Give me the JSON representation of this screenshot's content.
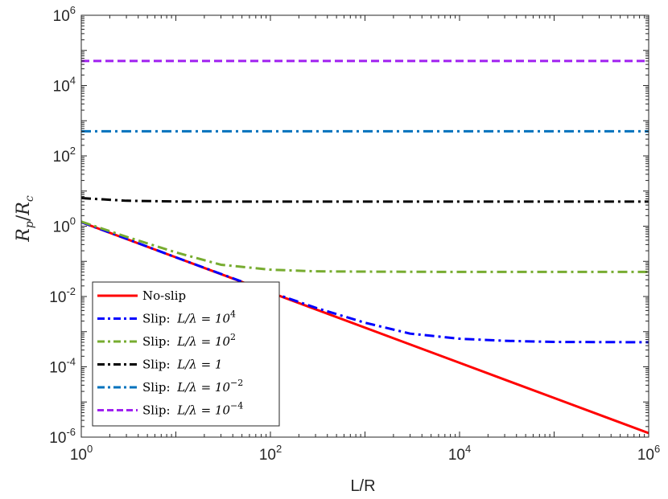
{
  "chart_data": {
    "type": "line",
    "xlabel": "L/R",
    "ylabel": {
      "base": "R",
      "num_sub": "p",
      "den_sub": "c"
    },
    "x_scale": "log",
    "y_scale": "log",
    "xlim": [
      1,
      1000000
    ],
    "ylim": [
      1e-06,
      1000000
    ],
    "x_ticks": [
      {
        "base": "10",
        "exp": "0"
      },
      {
        "base": "10",
        "exp": "2"
      },
      {
        "base": "10",
        "exp": "4"
      },
      {
        "base": "10",
        "exp": "6"
      }
    ],
    "y_ticks": [
      {
        "base": "10",
        "exp": "-6"
      },
      {
        "base": "10",
        "exp": "-4"
      },
      {
        "base": "10",
        "exp": "-2"
      },
      {
        "base": "10",
        "exp": "0"
      },
      {
        "base": "10",
        "exp": "2"
      },
      {
        "base": "10",
        "exp": "4"
      },
      {
        "base": "10",
        "exp": "6"
      }
    ],
    "grid": false,
    "box": true,
    "legend_position": "bottom-left",
    "series": [
      {
        "name": "No-slip",
        "legend": {
          "prefix": "No-slip",
          "math": "",
          "exp": ""
        },
        "color": "#ff0000",
        "style": "solid",
        "points": [
          [
            1,
            1.3
          ],
          [
            10,
            0.13
          ],
          [
            100,
            0.013
          ],
          [
            1000,
            0.0013
          ],
          [
            10000,
            0.00013
          ],
          [
            100000,
            1.3e-05
          ],
          [
            1000000,
            1.3e-06
          ]
        ]
      },
      {
        "name": "Slip: L/λ = 10^4",
        "legend": {
          "prefix": "Slip: ",
          "math": "L/λ = 10",
          "exp": "4"
        },
        "color": "#0000ff",
        "style": "dashdot",
        "points": [
          [
            1,
            1.3
          ],
          [
            3,
            0.44
          ],
          [
            10,
            0.13
          ],
          [
            30,
            0.044
          ],
          [
            100,
            0.0133
          ],
          [
            300,
            0.0048
          ],
          [
            1000,
            0.0018
          ],
          [
            3000,
            0.00088
          ],
          [
            10000,
            0.00063
          ],
          [
            30000,
            0.00055
          ],
          [
            100000,
            0.00051
          ],
          [
            1000000,
            0.0005
          ]
        ]
      },
      {
        "name": "Slip: L/λ = 10^2",
        "legend": {
          "prefix": "Slip: ",
          "math": "L/λ = 10",
          "exp": "2"
        },
        "color": "#77ac30",
        "style": "dashdot",
        "points": [
          [
            1,
            1.35
          ],
          [
            3,
            0.5
          ],
          [
            10,
            0.18
          ],
          [
            30,
            0.08
          ],
          [
            100,
            0.058
          ],
          [
            300,
            0.052
          ],
          [
            1000,
            0.051
          ],
          [
            10000,
            0.05
          ],
          [
            1000000,
            0.05
          ]
        ]
      },
      {
        "name": "Slip: L/λ = 1",
        "legend": {
          "prefix": "Slip: ",
          "math": "L/λ = 1",
          "exp": ""
        },
        "color": "#000000",
        "style": "dashdot",
        "points": [
          [
            1,
            6.3
          ],
          [
            3,
            5.3
          ],
          [
            10,
            5.05
          ],
          [
            30,
            5.0
          ],
          [
            100,
            5.0
          ],
          [
            1000000,
            5.0
          ]
        ]
      },
      {
        "name": "Slip: L/λ = 10^-2",
        "legend": {
          "prefix": "Slip: ",
          "math": "L/λ = 10",
          "exp": "−2"
        },
        "color": "#0072bd",
        "style": "dashdot",
        "points": [
          [
            1,
            500
          ],
          [
            1000000,
            500
          ]
        ]
      },
      {
        "name": "Slip: L/λ = 10^-4",
        "legend": {
          "prefix": "Slip: ",
          "math": "L/λ = 10",
          "exp": "−4"
        },
        "color": "#a020f0",
        "style": "dashed",
        "points": [
          [
            1,
            50000
          ],
          [
            1000000,
            50000
          ]
        ]
      }
    ]
  }
}
